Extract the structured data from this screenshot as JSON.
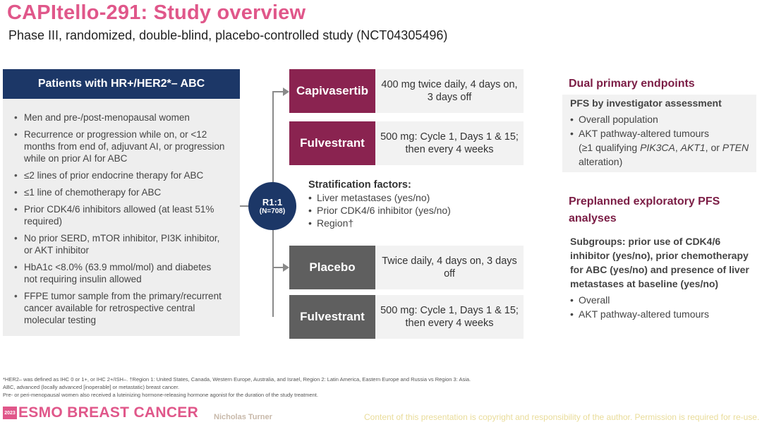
{
  "title": "CAPItello-291: Study overview",
  "subtitle": "Phase III, randomized, double-blind, placebo-controlled study (NCT04305496)",
  "patients": {
    "header": "Patients with HR+/HER2*– ABC",
    "criteria": [
      "Men and pre-/post-menopausal women",
      "Recurrence or progression while on, or <12 months from end of, adjuvant AI, or progression while on prior AI for ABC",
      "≤2 lines of prior endocrine therapy for ABC",
      "≤1 line of chemotherapy for ABC",
      "Prior CDK4/6 inhibitors allowed (at least 51% required)",
      "No prior SERD, mTOR inhibitor, PI3K inhibitor, or AKT inhibitor",
      "HbA1c <8.0% (63.9 mmol/mol) and diabetes not requiring insulin allowed",
      "FFPE tumor sample from the primary/recurrent cancer available for retrospective central molecular testing"
    ]
  },
  "randomization": {
    "ratio": "R1:1",
    "n": "(N=708)"
  },
  "arms": [
    {
      "drug": "Capivasertib",
      "dose": "400 mg twice daily, 4 days on, 3 days off",
      "color": "#8a2350"
    },
    {
      "drug": "Fulvestrant",
      "dose": "500 mg: Cycle 1, Days 1 & 15; then every 4 weeks",
      "color": "#8a2350"
    },
    {
      "drug": "Placebo",
      "dose": "Twice daily, 4 days on, 3 days off",
      "color": "#5f5f5f"
    },
    {
      "drug": "Fulvestrant",
      "dose": "500 mg: Cycle 1, Days 1 & 15; then every 4 weeks",
      "color": "#5f5f5f"
    }
  ],
  "stratification": {
    "title": "Stratification factors:",
    "items": [
      "Liver metastases (yes/no)",
      "Prior CDK4/6 inhibitor (yes/no)",
      "Region†"
    ]
  },
  "endpoints": {
    "title": "Dual primary endpoints",
    "subtitle": "PFS by investigator assessment",
    "item1": "Overall population",
    "item2": "AKT pathway-altered tumours",
    "note_prefix": "(≥1 qualifying ",
    "gene1": "PIK3CA",
    "sep1": ", ",
    "gene2": "AKT1",
    "sep2": ", or ",
    "gene3": "PTEN",
    "note_suffix": "alteration)"
  },
  "exploratory": {
    "title": "Preplanned exploratory PFS analyses",
    "subgroups": "Subgroups: prior use of CDK4/6 inhibitor (yes/no), prior chemotherapy for ABC (yes/no) and presence of liver metastases at baseline (yes/no)",
    "items": [
      "Overall",
      "AKT pathway-altered tumours"
    ]
  },
  "footnotes": [
    "*HER2– was defined as IHC 0 or 1+, or IHC 2+/ISH–. †Region 1: United States, Canada, Western Europe, Australia, and Israel, Region 2: Latin America, Eastern Europe and Russia vs Region 3: Asia.",
    "ABC, advanced (locally advanced [inoperable] or metastatic) breast cancer.",
    "Pre- or peri-menopausal women also received a luteinizing hormone-releasing hormone agonist for the duration of the study treatment."
  ],
  "footer": {
    "year": "2023",
    "brand": "ESMO BREAST CANCER",
    "author": "Nicholas Turner",
    "copyright": "Content of this presentation is copyright and responsibility of the author. Permission is required for re-use."
  }
}
